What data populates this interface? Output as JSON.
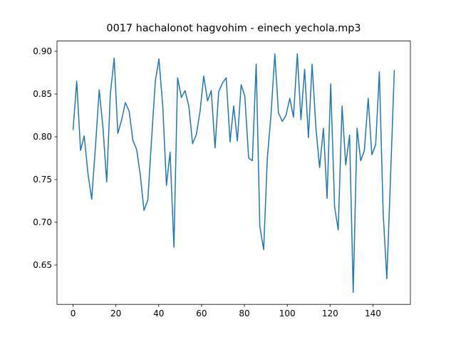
{
  "chart_data": {
    "type": "line",
    "title": "0017 hachalonot hagvohim - einech yechola.mp3",
    "x": [
      0,
      1.7,
      3.5,
      5.2,
      7.0,
      8.7,
      10.5,
      12.2,
      14.0,
      15.7,
      17.4,
      19.2,
      20.9,
      22.7,
      24.4,
      26.2,
      27.9,
      29.7,
      31.4,
      33.1,
      34.9,
      36.6,
      38.4,
      40.1,
      41.9,
      43.6,
      45.3,
      47.1,
      48.8,
      50.6,
      52.3,
      54.1,
      55.8,
      57.6,
      59.3,
      61.0,
      62.8,
      64.5,
      66.3,
      68.0,
      69.8,
      71.5,
      73.3,
      75.0,
      76.7,
      78.5,
      80.2,
      82.0,
      83.7,
      85.5,
      87.2,
      89.0,
      90.7,
      92.4,
      94.2,
      95.9,
      97.7,
      99.4,
      101.2,
      102.9,
      104.7,
      106.4,
      108.1,
      109.9,
      111.6,
      113.4,
      115.1,
      116.9,
      118.6,
      120.3,
      122.1,
      123.8,
      125.6,
      127.3,
      129.1,
      130.8,
      132.6,
      134.3,
      136.0,
      137.8,
      139.5,
      141.3,
      143.0,
      144.8,
      146.5,
      148.3,
      150.0
    ],
    "values": [
      0.808,
      0.865,
      0.784,
      0.801,
      0.756,
      0.727,
      0.79,
      0.855,
      0.81,
      0.747,
      0.85,
      0.892,
      0.804,
      0.82,
      0.84,
      0.83,
      0.796,
      0.785,
      0.755,
      0.714,
      0.726,
      0.795,
      0.865,
      0.891,
      0.835,
      0.743,
      0.782,
      0.671,
      0.869,
      0.846,
      0.854,
      0.835,
      0.792,
      0.803,
      0.83,
      0.871,
      0.842,
      0.854,
      0.787,
      0.853,
      0.863,
      0.869,
      0.794,
      0.836,
      0.795,
      0.861,
      0.847,
      0.775,
      0.772,
      0.885,
      0.695,
      0.668,
      0.775,
      0.825,
      0.897,
      0.828,
      0.818,
      0.825,
      0.845,
      0.823,
      0.897,
      0.82,
      0.879,
      0.799,
      0.885,
      0.81,
      0.764,
      0.81,
      0.728,
      0.862,
      0.718,
      0.691,
      0.836,
      0.767,
      0.802,
      0.618,
      0.81,
      0.772,
      0.784,
      0.845,
      0.779,
      0.791,
      0.876,
      0.71,
      0.634,
      0.758,
      0.878
    ],
    "color": "#1f77b4",
    "xlim": [
      -7.5,
      157.5
    ],
    "xticks": [
      0,
      20,
      40,
      60,
      80,
      100,
      120,
      140
    ],
    "ylim": [
      0.604,
      0.912
    ],
    "yticks": [
      0.65,
      {
        "value": 0.7,
        "label": "0.70"
      },
      0.75,
      {
        "value": 0.8,
        "label": "0.80"
      },
      0.85,
      {
        "value": 0.9,
        "label": "0.90"
      }
    ],
    "grid": false
  }
}
